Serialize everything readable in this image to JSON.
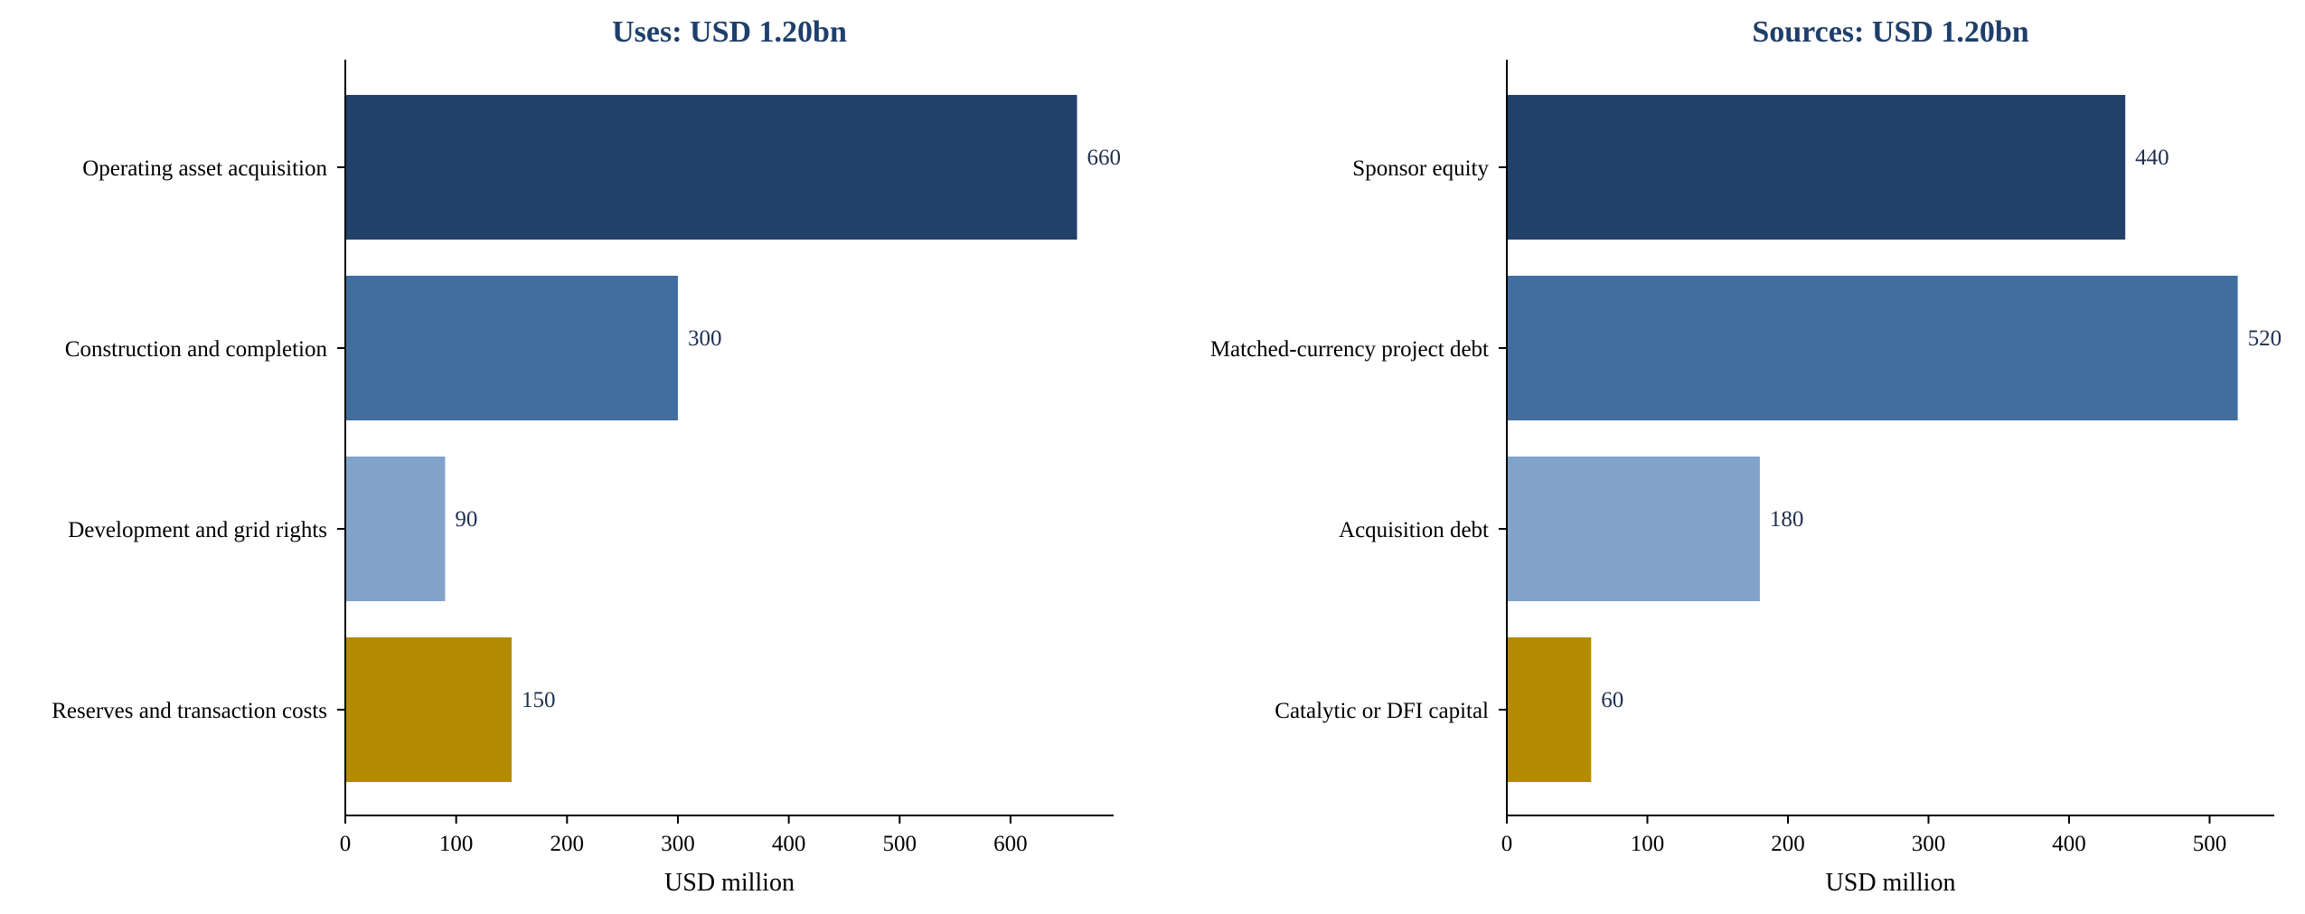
{
  "chart_data": [
    {
      "type": "bar",
      "orientation": "horizontal",
      "title": "Uses: USD 1.20bn",
      "xlabel": "USD million",
      "ylabel": "",
      "categories": [
        "Operating asset acquisition",
        "Construction and completion",
        "Development and grid rights",
        "Reserves and transaction costs"
      ],
      "values": [
        660,
        300,
        90,
        150
      ],
      "value_labels": [
        "660",
        "300",
        "90",
        "150"
      ],
      "colors": [
        "#21416a",
        "#416e9e",
        "#81a3ca",
        "#b38a00"
      ],
      "xlim": [
        0,
        693
      ],
      "xticks": [
        0,
        100,
        200,
        300,
        400,
        500,
        600
      ],
      "xtick_labels": [
        "0",
        "100",
        "200",
        "300",
        "400",
        "500",
        "600"
      ],
      "grid": false,
      "legend": "none"
    },
    {
      "type": "bar",
      "orientation": "horizontal",
      "title": "Sources: USD 1.20bn",
      "xlabel": "USD million",
      "ylabel": "",
      "categories": [
        "Sponsor equity",
        "Matched-currency project debt",
        "Acquisition debt",
        "Catalytic or DFI capital"
      ],
      "values": [
        440,
        520,
        180,
        60
      ],
      "value_labels": [
        "440",
        "520",
        "180",
        "60"
      ],
      "colors": [
        "#21416a",
        "#416e9e",
        "#81a3ca",
        "#b38a00"
      ],
      "xlim": [
        0,
        546
      ],
      "xticks": [
        0,
        100,
        200,
        300,
        400,
        500
      ],
      "xtick_labels": [
        "0",
        "100",
        "200",
        "300",
        "400",
        "500"
      ],
      "grid": false,
      "legend": "none"
    }
  ]
}
